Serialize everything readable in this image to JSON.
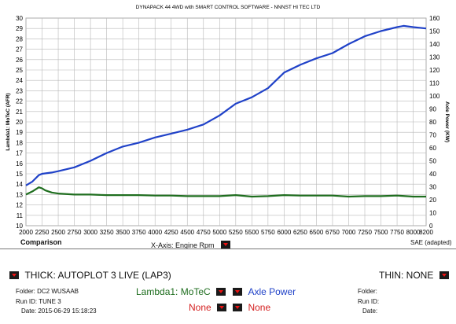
{
  "title": "DYNAPACK 44 4WD with SMART CONTROL SOFTWARE - NNNST HI TEC LTD",
  "comparison_label": "Comparison",
  "x_axis_label": "X-Axis: Engine Rpm",
  "sae_label": "SAE (adapted)",
  "thick_label": "THICK: AUTOPLOT 3 LIVE (LAP3)",
  "thin_label": "THIN: NONE",
  "left_info": {
    "folder": "Folder: DC2 WUSAAB",
    "run_id": "Run ID: TUNE 3",
    "date": "Date: 2015-06-29 15:18:23"
  },
  "right_info": {
    "folder": "Folder:",
    "run_id": "Run ID:",
    "date": "Date:"
  },
  "channels": {
    "left_primary": "Lambda1: MoTeC",
    "right_primary": "Axle Power",
    "left_secondary": "None",
    "right_secondary": "None"
  },
  "colors": {
    "lambda": "#1f6e1f",
    "power": "#2042c8",
    "none": "#d42020",
    "grid": "#b8b8b8",
    "accent_button": "#d42020"
  },
  "chart_data": {
    "type": "line",
    "title": "DYNAPACK 44 4WD with SMART CONTROL SOFTWARE - NNNST HI TEC LTD",
    "xlabel": "X-Axis: Engine Rpm",
    "ylabel_left": "Lambda1: MoTeC (AFR)",
    "ylabel_right": "Axle Power (KW)",
    "xlim": [
      2000,
      8200
    ],
    "ylim_left": [
      10,
      30
    ],
    "ylim_right": [
      0,
      160
    ],
    "x_ticks": [
      2000,
      2250,
      2500,
      2750,
      3000,
      3250,
      3500,
      3750,
      4000,
      4250,
      4500,
      4750,
      5000,
      5250,
      5500,
      5750,
      6000,
      6250,
      6500,
      6750,
      7000,
      7250,
      7500,
      7750,
      8000,
      8200
    ],
    "y_left_ticks": [
      10,
      11,
      12,
      13,
      14,
      15,
      16,
      17,
      18,
      19,
      20,
      21,
      22,
      23,
      24,
      25,
      26,
      27,
      28,
      29,
      30
    ],
    "y_right_ticks": [
      0,
      10,
      20,
      30,
      40,
      50,
      60,
      70,
      80,
      90,
      100,
      110,
      120,
      130,
      140,
      150,
      160
    ],
    "grid": true,
    "series": [
      {
        "name": "Lambda1: MoTeC",
        "axis": "left",
        "x": [
          2000,
          2100,
          2200,
          2250,
          2300,
          2400,
          2500,
          2750,
          3000,
          3250,
          3500,
          3750,
          4000,
          4250,
          4500,
          4750,
          5000,
          5250,
          5500,
          5750,
          6000,
          6250,
          6500,
          6750,
          7000,
          7250,
          7500,
          7750,
          8000,
          8200
        ],
        "values": [
          13.0,
          13.3,
          13.7,
          13.6,
          13.4,
          13.2,
          13.1,
          13.0,
          13.0,
          12.95,
          12.95,
          12.95,
          12.9,
          12.9,
          12.85,
          12.85,
          12.85,
          12.95,
          12.8,
          12.85,
          12.95,
          12.9,
          12.9,
          12.9,
          12.8,
          12.85,
          12.85,
          12.9,
          12.8,
          12.8
        ]
      },
      {
        "name": "Axle Power",
        "axis": "right",
        "x": [
          2000,
          2100,
          2200,
          2250,
          2400,
          2500,
          2750,
          3000,
          3250,
          3500,
          3750,
          4000,
          4250,
          4500,
          4750,
          5000,
          5250,
          5500,
          5750,
          6000,
          6250,
          6500,
          6750,
          7000,
          7250,
          7500,
          7750,
          7850,
          8000,
          8200
        ],
        "values": [
          31,
          34,
          39,
          40,
          41,
          42,
          45,
          50,
          56,
          61,
          64,
          68,
          71,
          74,
          78,
          85,
          94,
          99,
          106,
          118,
          124,
          129,
          133,
          140,
          146,
          150,
          153,
          154,
          153,
          152
        ]
      }
    ]
  }
}
